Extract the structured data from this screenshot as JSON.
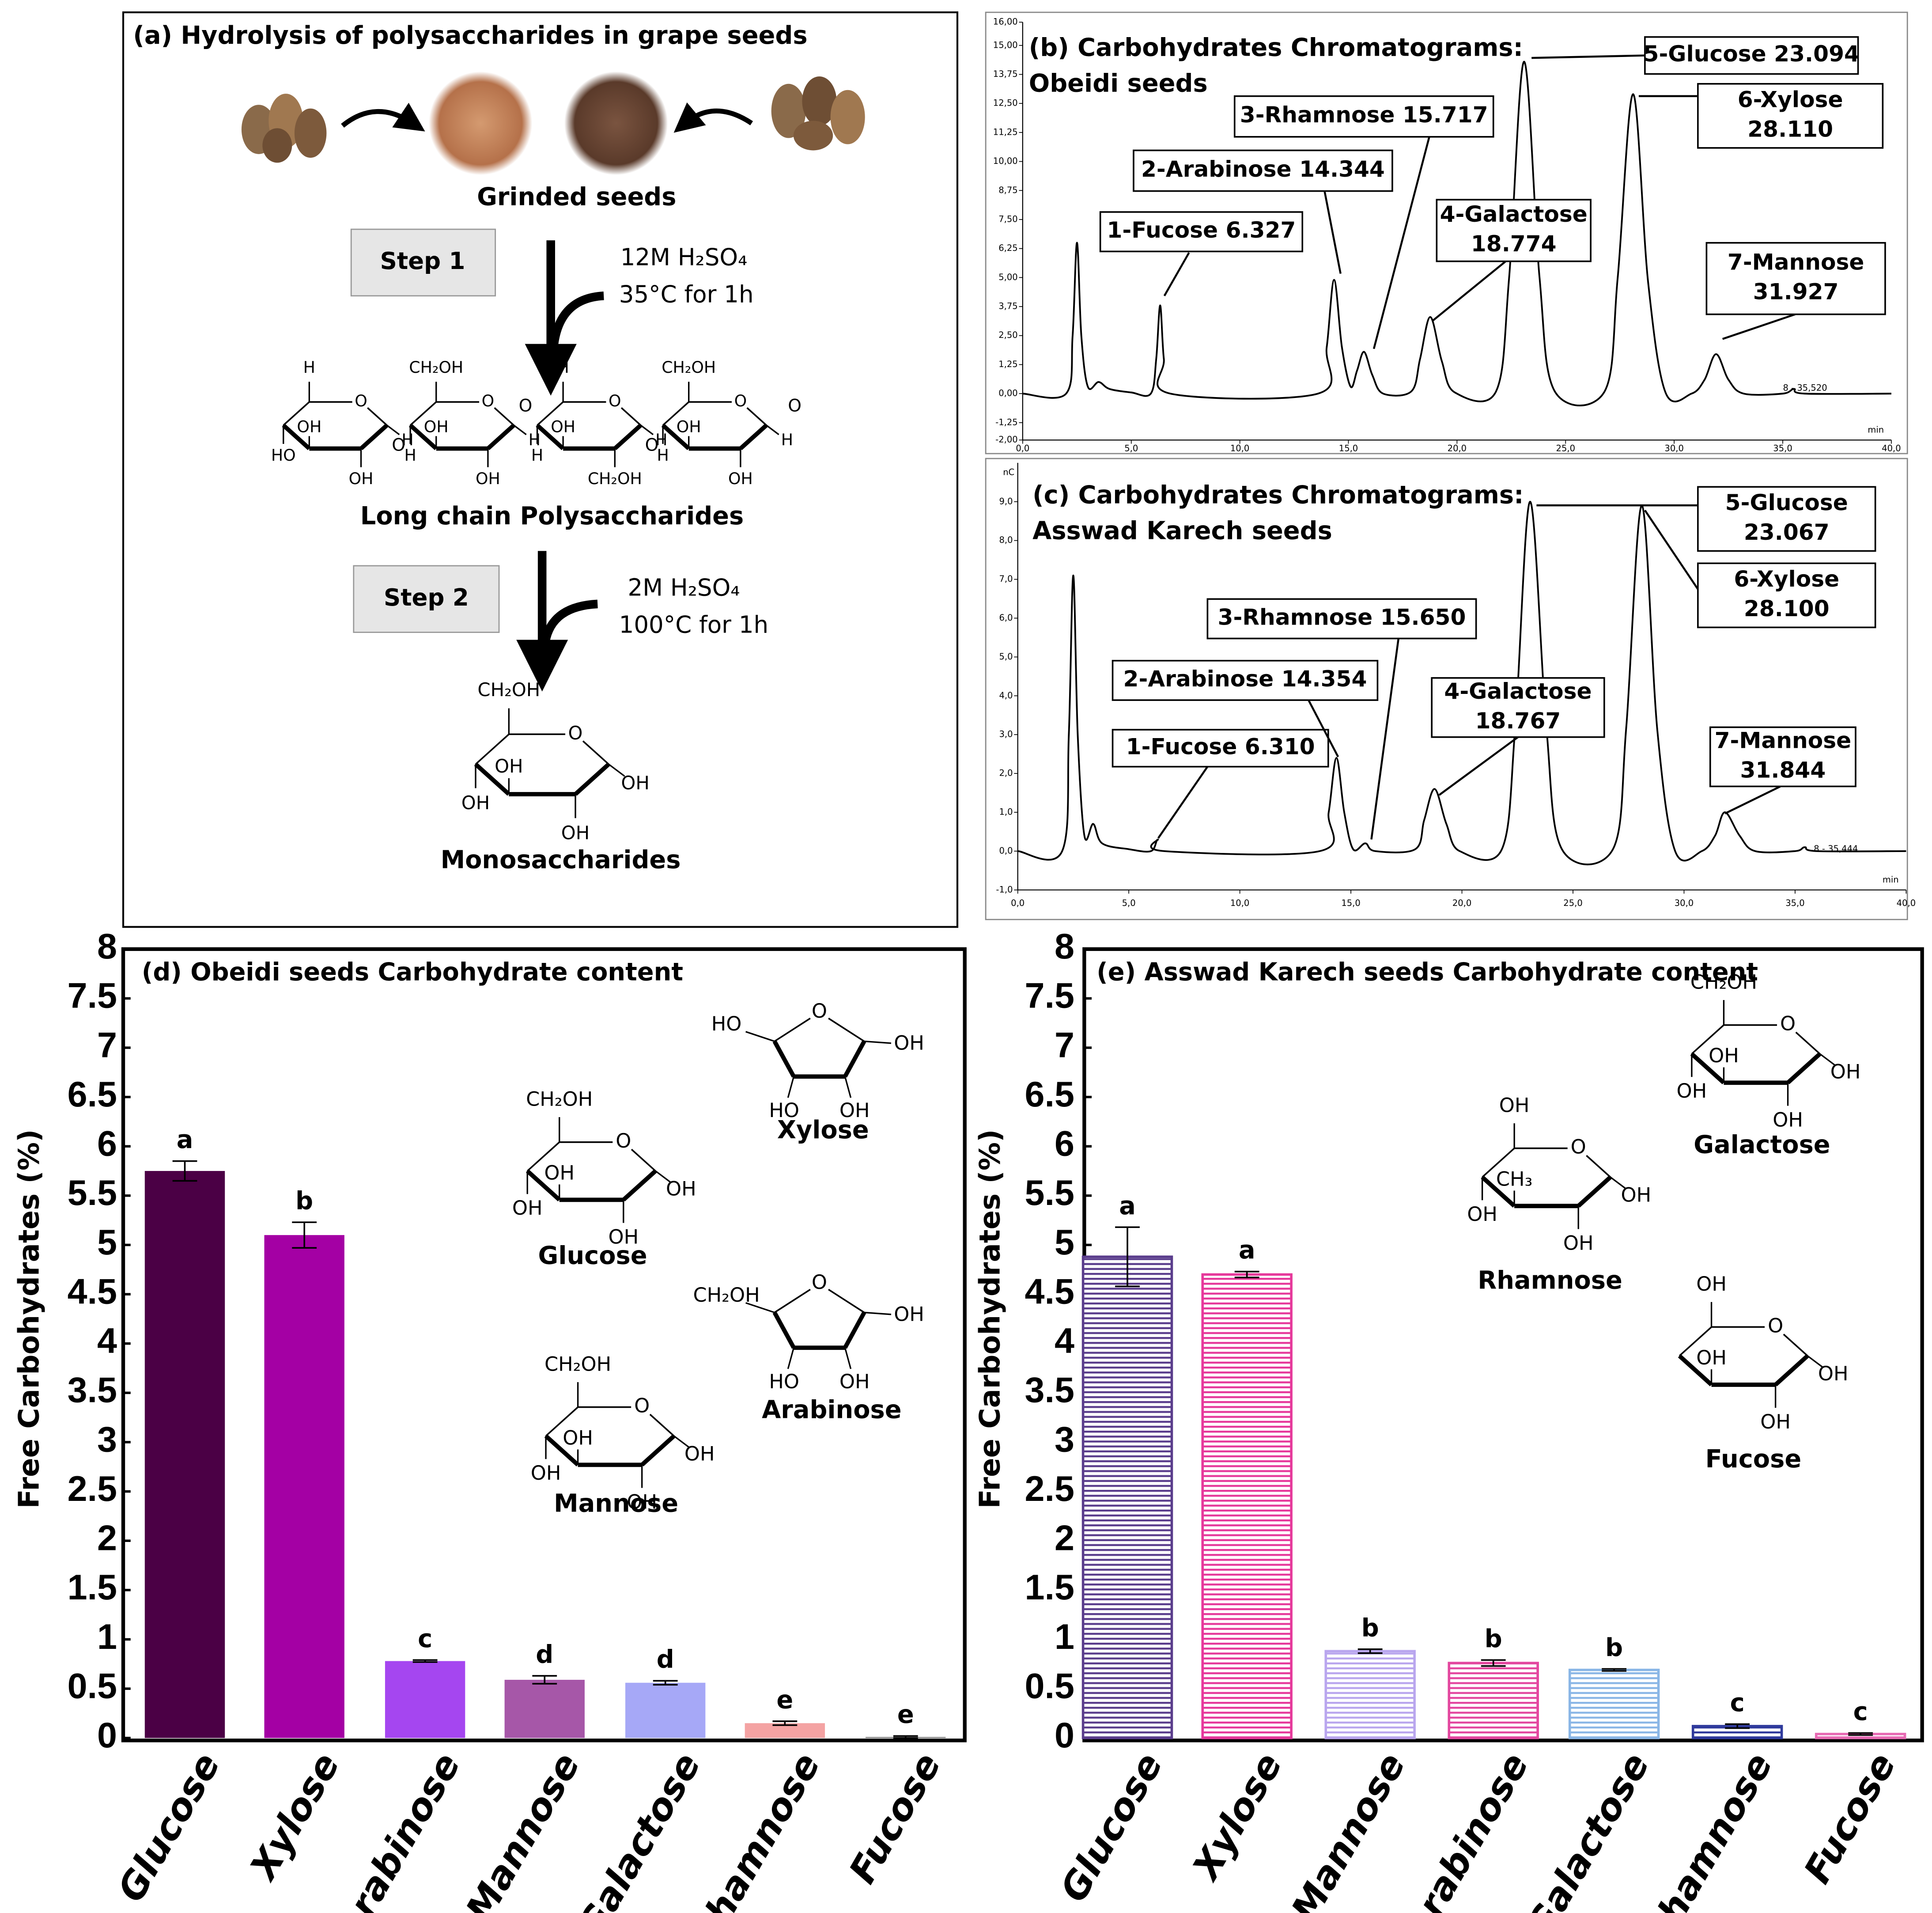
{
  "diagram": {
    "title": "(a) Hydrolysis of polysaccharides in grape seeds",
    "grinded_label": "Grinded seeds",
    "step1": {
      "label": "Step 1",
      "reagent": "12M H₂SO₄",
      "condition": "35°C for 1h"
    },
    "polysaccharide": {
      "rings": [
        [
          "O",
          "H",
          "H",
          "OH",
          "OH",
          "HO"
        ],
        [
          "O",
          "CH₂OH",
          "H",
          "OH",
          "OH",
          "H"
        ],
        [
          "O",
          "H",
          "H",
          "CH₂OH",
          "OH",
          "H"
        ],
        [
          "O",
          "CH₂OH",
          "H",
          "OH",
          "OH",
          "H"
        ]
      ],
      "linkers": [
        "O",
        "O",
        "O",
        "O"
      ],
      "label": "Long chain Polysaccharides"
    },
    "step2": {
      "label": "Step 2",
      "reagent": "2M H₂SO₄",
      "condition": "100°C for 1h"
    },
    "monosaccharide": {
      "atoms": [
        "O",
        "CH₂OH",
        "OH",
        "OH",
        "OH",
        "OH"
      ],
      "label": "Monosaccharides"
    }
  },
  "chart_data": [
    {
      "type": "line",
      "title": [
        "(b) Carbohydrates Chromatograms:",
        "Obeidi seeds"
      ],
      "x_label": "min",
      "color": "#000000",
      "x": [
        0,
        2.0,
        2.3,
        2.5,
        2.7,
        3.0,
        3.5,
        4.0,
        5.0,
        5.9,
        6.15,
        6.33,
        6.5,
        6.8,
        13.6,
        14.0,
        14.34,
        14.7,
        15.1,
        15.4,
        15.72,
        16.1,
        16.6,
        17.9,
        18.3,
        18.77,
        19.3,
        19.9,
        21.8,
        22.4,
        23.09,
        23.8,
        24.5,
        26.8,
        27.4,
        28.11,
        28.8,
        29.6,
        30.8,
        31.4,
        31.93,
        32.5,
        33.2,
        35.0,
        35.52,
        36.0,
        40.0
      ],
      "values": [
        0,
        0,
        2.5,
        6.5,
        2.5,
        0.3,
        0.5,
        0.2,
        0.05,
        0,
        1.5,
        3.8,
        1.5,
        0,
        0,
        2.0,
        4.9,
        2.0,
        0.3,
        1.0,
        1.8,
        0.8,
        0,
        0.1,
        1.5,
        3.3,
        1.4,
        0.05,
        0.1,
        5.0,
        14.3,
        5.0,
        0.1,
        0.1,
        5.0,
        12.9,
        4.8,
        0.05,
        0,
        0.6,
        1.7,
        0.6,
        0,
        0,
        0.2,
        0,
        0
      ],
      "xlim": [
        0,
        40
      ],
      "xticks": [
        {
          "value": 0,
          "label": "0,0"
        },
        {
          "value": 5,
          "label": "5,0"
        },
        {
          "value": 10,
          "label": "10,0"
        },
        {
          "value": 15,
          "label": "15,0"
        },
        {
          "value": 20,
          "label": "20,0"
        },
        {
          "value": 25,
          "label": "25,0"
        },
        {
          "value": 30,
          "label": "30,0"
        },
        {
          "value": 35,
          "label": "35,0"
        },
        {
          "value": 40,
          "label": "40,0"
        }
      ],
      "ylim": [
        -2,
        16
      ],
      "yticks": [
        {
          "value": -2,
          "label": "-2,00"
        },
        {
          "value": -1.25,
          "label": "-1,25"
        },
        {
          "value": 0,
          "label": "0,00"
        },
        {
          "value": 1.25,
          "label": "1,25"
        },
        {
          "value": 2.5,
          "label": "2,50"
        },
        {
          "value": 3.75,
          "label": "3,75"
        },
        {
          "value": 5,
          "label": "5,00"
        },
        {
          "value": 6.25,
          "label": "6,25"
        },
        {
          "value": 7.5,
          "label": "7,50"
        },
        {
          "value": 8.75,
          "label": "8,75"
        },
        {
          "value": 10,
          "label": "10,00"
        },
        {
          "value": 11.25,
          "label": "11,25"
        },
        {
          "value": 12.5,
          "label": "12,50"
        },
        {
          "value": 13.75,
          "label": "13,75"
        },
        {
          "value": 15,
          "label": "15,00"
        },
        {
          "value": 16,
          "label": "16,00"
        }
      ],
      "annotations": [
        {
          "lines": [
            "1-Fucose 6.327"
          ]
        },
        {
          "lines": [
            "2-Arabinose 14.344"
          ]
        },
        {
          "lines": [
            "3-Rhamnose 15.717"
          ]
        },
        {
          "lines": [
            "4-Galactose",
            "18.774"
          ]
        },
        {
          "lines": [
            "5-Glucose 23.094"
          ]
        },
        {
          "lines": [
            "6-Xylose",
            "28.110"
          ]
        },
        {
          "lines": [
            "7-Mannose",
            "31.927"
          ]
        }
      ],
      "end_label": "8 - 35,520"
    },
    {
      "type": "line",
      "title": [
        "(c) Carbohydrates Chromatograms:",
        "Asswad Karech seeds"
      ],
      "x_label": "min",
      "y_label": "nC",
      "color": "#000000",
      "x": [
        0,
        2.0,
        2.3,
        2.5,
        2.7,
        3.0,
        3.4,
        3.8,
        5.0,
        6.0,
        6.31,
        6.6,
        13.6,
        14.0,
        14.35,
        14.7,
        15.1,
        15.65,
        16.1,
        17.9,
        18.3,
        18.77,
        19.3,
        19.9,
        21.8,
        22.4,
        23.07,
        23.8,
        24.5,
        26.8,
        27.4,
        28.1,
        28.8,
        29.6,
        30.8,
        31.4,
        31.84,
        32.5,
        33.2,
        35.0,
        35.44,
        36.0,
        40.0
      ],
      "values": [
        0,
        0,
        3.0,
        7.1,
        3.0,
        0.4,
        0.7,
        0.2,
        0.05,
        0,
        0.3,
        0,
        0,
        1.0,
        2.4,
        1.0,
        0.05,
        0.2,
        0,
        0.05,
        0.8,
        1.6,
        0.7,
        0,
        0.05,
        3.2,
        9.0,
        3.2,
        0.05,
        0.05,
        3.2,
        8.9,
        3.1,
        0,
        0,
        0.4,
        1.0,
        0.4,
        0,
        0,
        0.1,
        0,
        0
      ],
      "xlim": [
        0,
        40
      ],
      "xticks": [
        {
          "value": 0,
          "label": "0,0"
        },
        {
          "value": 5,
          "label": "5,0"
        },
        {
          "value": 10,
          "label": "10,0"
        },
        {
          "value": 15,
          "label": "15,0"
        },
        {
          "value": 20,
          "label": "20,0"
        },
        {
          "value": 25,
          "label": "25,0"
        },
        {
          "value": 30,
          "label": "30,0"
        },
        {
          "value": 35,
          "label": "35,0"
        },
        {
          "value": 40,
          "label": "40,0"
        }
      ],
      "ylim": [
        -1,
        10
      ],
      "yticks": [
        {
          "value": -1,
          "label": "-1,0"
        },
        {
          "value": 0,
          "label": "0,0"
        },
        {
          "value": 1,
          "label": "1,0"
        },
        {
          "value": 2,
          "label": "2,0"
        },
        {
          "value": 3,
          "label": "3,0"
        },
        {
          "value": 4,
          "label": "4,0"
        },
        {
          "value": 5,
          "label": "5,0"
        },
        {
          "value": 6,
          "label": "6,0"
        },
        {
          "value": 7,
          "label": "7,0"
        },
        {
          "value": 8,
          "label": "8,0"
        },
        {
          "value": 9,
          "label": "9,0"
        }
      ],
      "annotations": [
        {
          "lines": [
            "1-Fucose 6.310"
          ]
        },
        {
          "lines": [
            "2-Arabinose 14.354"
          ]
        },
        {
          "lines": [
            "3-Rhamnose 15.650"
          ]
        },
        {
          "lines": [
            "4-Galactose",
            "18.767"
          ]
        },
        {
          "lines": [
            "5-Glucose",
            "23.067"
          ]
        },
        {
          "lines": [
            "6-Xylose",
            "28.100"
          ]
        },
        {
          "lines": [
            "7-Mannose",
            "31.844"
          ]
        }
      ],
      "end_label": "8 - 35,444"
    },
    {
      "type": "bar",
      "title": "(d) Obeidi seeds Carbohydrate content",
      "y_label": "Free Carbohydrates (%)",
      "fill_style": "solid",
      "categories": [
        "Glucose",
        "Xylose",
        "Arabinose",
        "Mannose",
        "Galactose",
        "Rhamnose",
        "Fucose"
      ],
      "values": [
        5.75,
        5.1,
        0.78,
        0.59,
        0.56,
        0.15,
        0.01
      ],
      "errors": [
        0.1,
        0.13,
        0.01,
        0.04,
        0.02,
        0.02,
        0.01
      ],
      "significance": [
        "a",
        "b",
        "c",
        "d",
        "d",
        "e",
        "e"
      ],
      "colors": [
        "#4b0045",
        "#a400a4",
        "#a546f0",
        "#a657a8",
        "#a6a8f7",
        "#f4a3a3",
        "#777777"
      ],
      "ylim": [
        0,
        8
      ],
      "yticks": [
        0,
        0.5,
        1,
        1.5,
        2,
        2.5,
        3,
        3.5,
        4,
        4.5,
        5,
        5.5,
        6,
        6.5,
        7,
        7.5,
        8
      ],
      "structures": [
        {
          "name": "Xylose",
          "atoms": [
            "O",
            "HO",
            "OH",
            "OH",
            "HO"
          ]
        },
        {
          "name": "Glucose",
          "atoms": [
            "O",
            "CH₂OH",
            "OH",
            "OH",
            "OH",
            "OH"
          ]
        },
        {
          "name": "Arabinose",
          "atoms": [
            "O",
            "CH₂OH",
            "OH",
            "OH",
            "HO"
          ]
        },
        {
          "name": "Mannose",
          "atoms": [
            "O",
            "CH₂OH",
            "OH",
            "OH",
            "OH",
            "OH"
          ]
        }
      ]
    },
    {
      "type": "bar",
      "title": "(e) Asswad Karech seeds Carbohydrate content",
      "y_label": "Free Carbohydrates (%)",
      "fill_style": "striped",
      "categories": [
        "Glucose",
        "Xylose",
        "Mannose",
        "Arabinose",
        "Galactose",
        "Rhamnose",
        "Fucose"
      ],
      "values": [
        4.88,
        4.7,
        0.88,
        0.76,
        0.69,
        0.12,
        0.04
      ],
      "errors": [
        0.3,
        0.03,
        0.02,
        0.03,
        0.01,
        0.02,
        0.01
      ],
      "significance": [
        "a",
        "a",
        "b",
        "b",
        "b",
        "c",
        "c"
      ],
      "colors": [
        "#5a3d8c",
        "#e6399b",
        "#b9a6ee",
        "#e3479f",
        "#8ab6e6",
        "#2f3a9c",
        "#e86bb4"
      ],
      "ylim": [
        0,
        8
      ],
      "yticks": [
        0,
        0.5,
        1,
        1.5,
        2,
        2.5,
        3,
        3.5,
        4,
        4.5,
        5,
        5.5,
        6,
        6.5,
        7,
        7.5,
        8
      ],
      "structures": [
        {
          "name": "Galactose",
          "atoms": [
            "O",
            "CH₂OH",
            "OH",
            "OH",
            "OH",
            "OH"
          ]
        },
        {
          "name": "Rhamnose",
          "atoms": [
            "O",
            "OH",
            "OH",
            "OH",
            "CH₃",
            "OH"
          ]
        },
        {
          "name": "Fucose",
          "atoms": [
            "O",
            "OH",
            "OH",
            "OH",
            "OH"
          ]
        }
      ]
    }
  ]
}
